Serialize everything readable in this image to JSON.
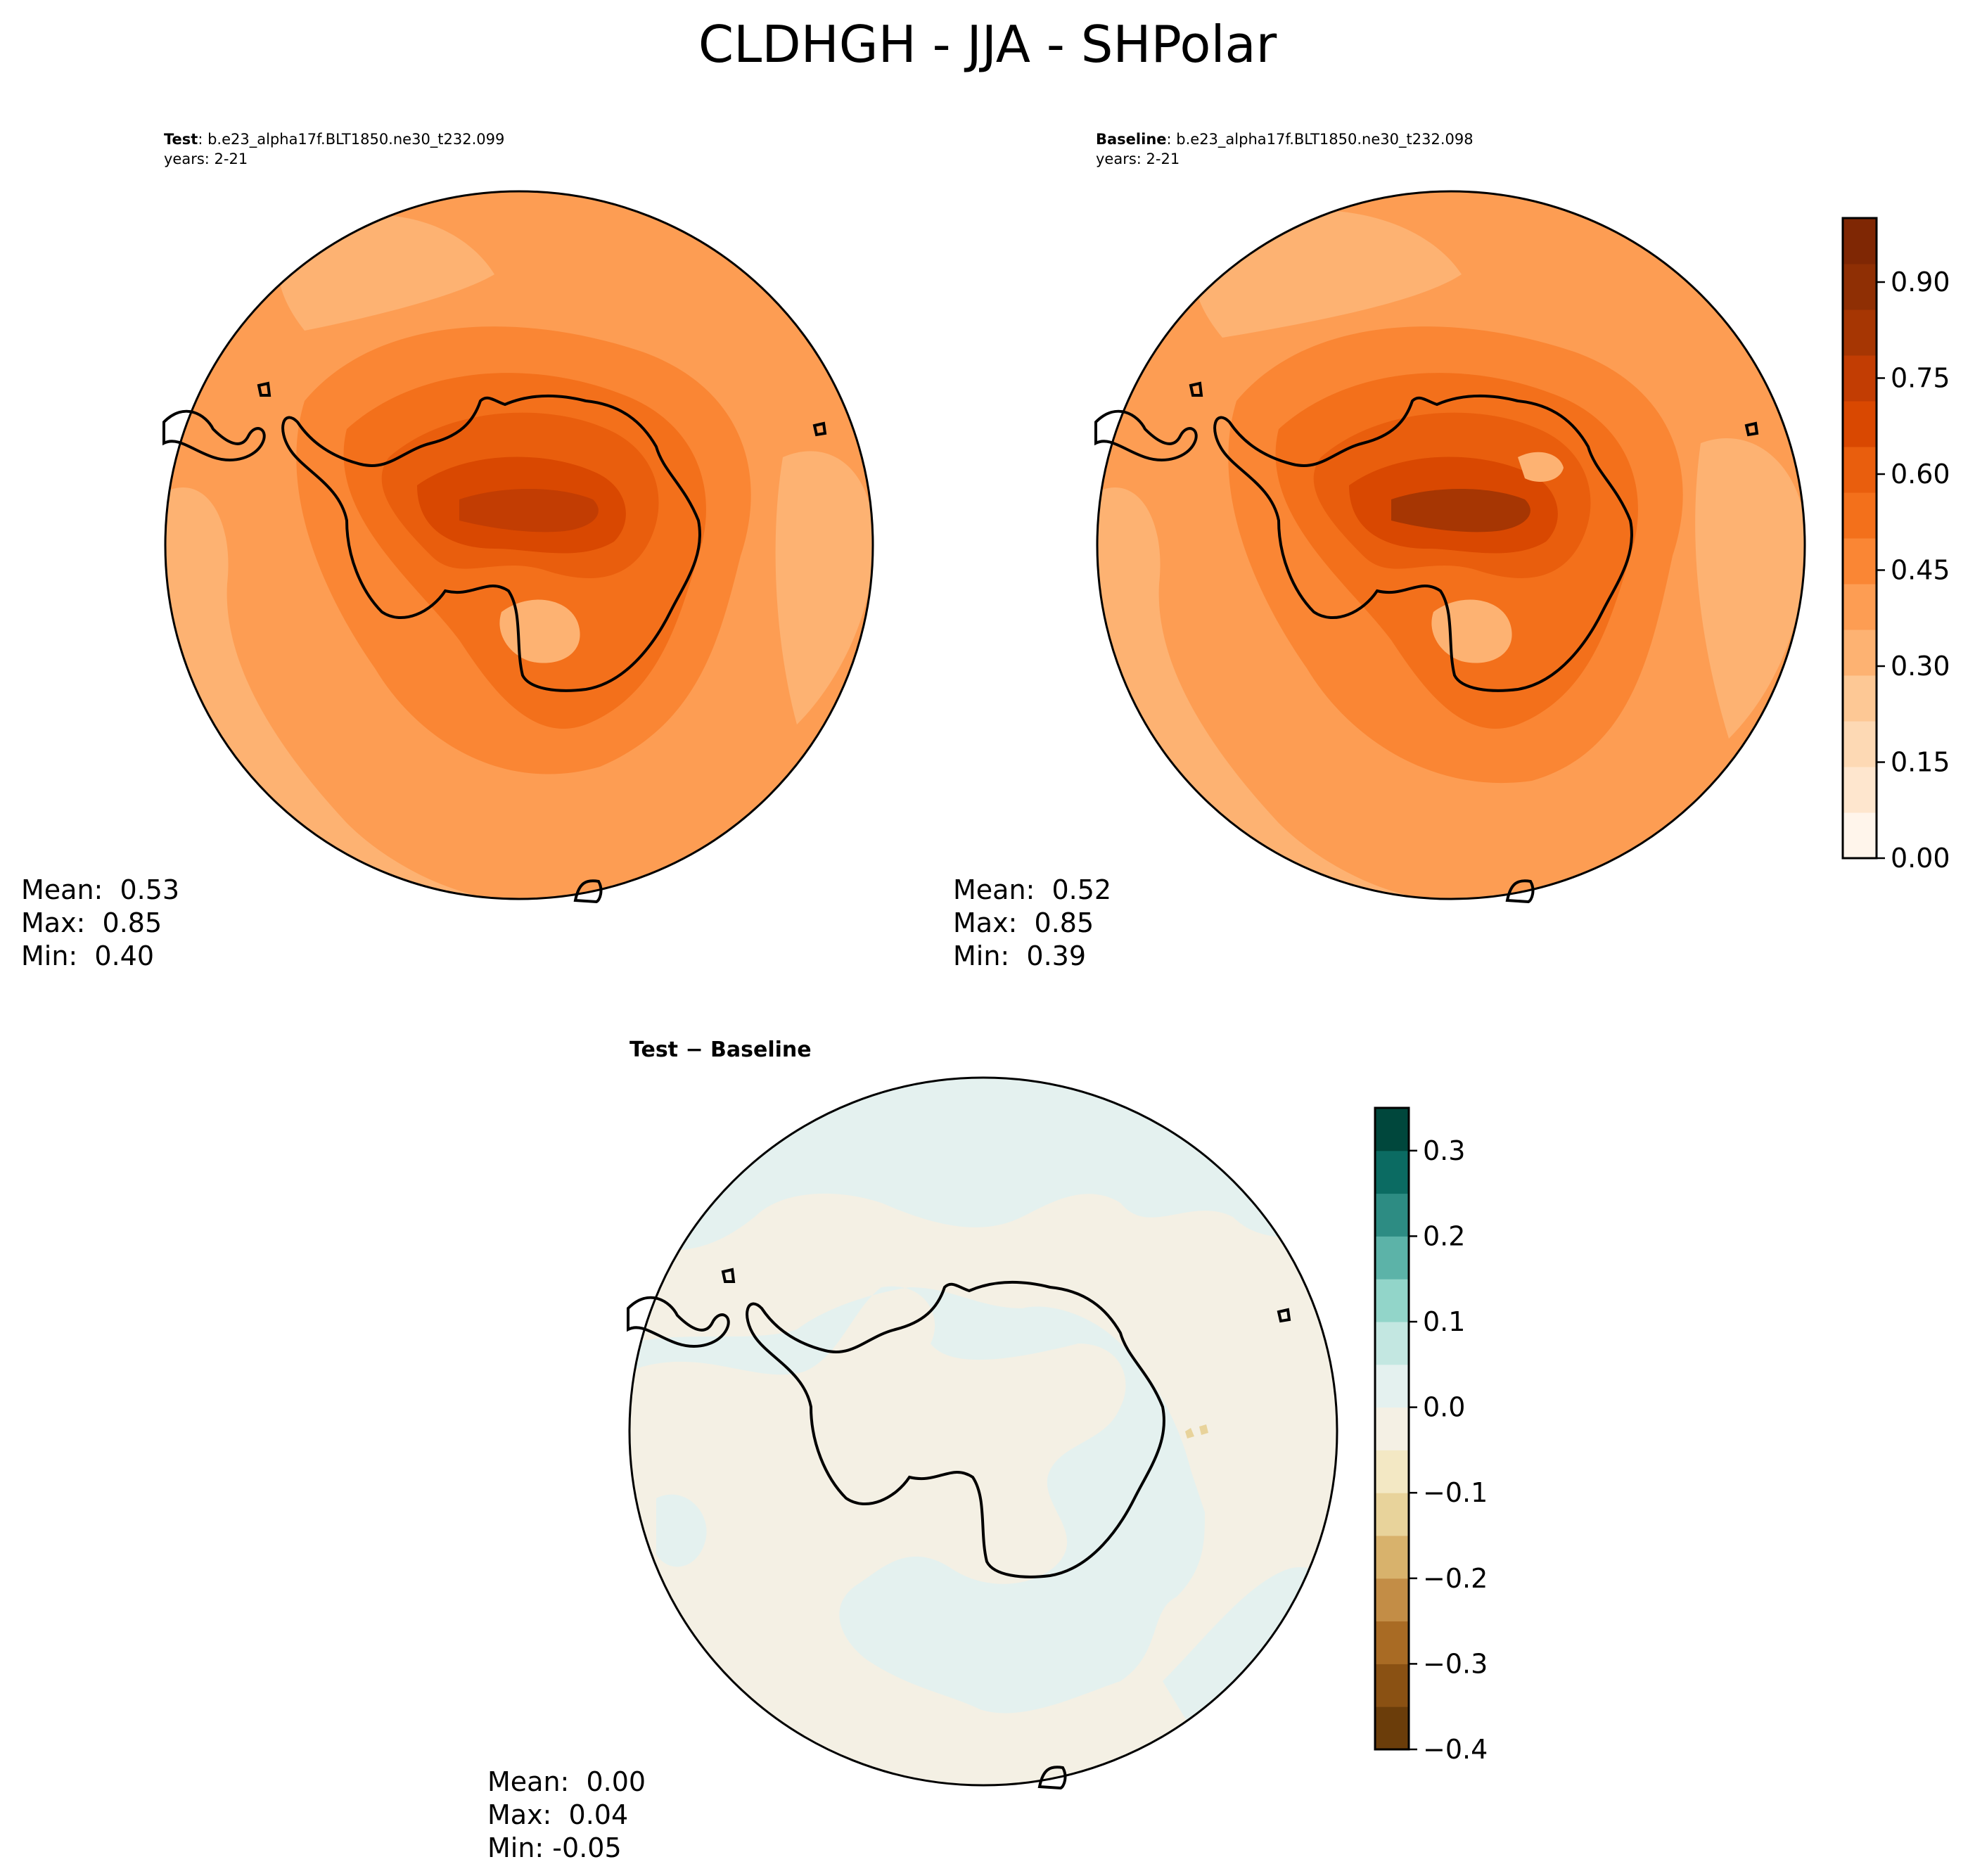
{
  "title": "CLDHGH - JJA - SHPolar",
  "panels": {
    "test": {
      "label": "Test",
      "case": ": b.e23_alpha17f.BLT1850.ne30_t232.099",
      "years": "years: 2-21",
      "mean": "Mean:  0.53",
      "max": "Max:  0.85",
      "min": "Min:  0.40"
    },
    "baseline": {
      "label": "Baseline",
      "case": ": b.e23_alpha17f.BLT1850.ne30_t232.098",
      "years": "years: 2-21",
      "mean": "Mean:  0.52",
      "max": "Max:  0.85",
      "min": "Min:  0.39"
    },
    "diff": {
      "label": "Test − Baseline",
      "mean": "Mean:  0.00",
      "max": "Max:  0.04",
      "min": "Min: -0.05"
    }
  },
  "colorbars": {
    "main": {
      "ticks": [
        "0.00",
        "0.15",
        "0.30",
        "0.45",
        "0.60",
        "0.75",
        "0.90"
      ],
      "colormap": "Oranges",
      "colors": [
        "#fff5eb",
        "#fee6ce",
        "#fdd9b4",
        "#fdc895",
        "#fdb272",
        "#fd9d53",
        "#fa8634",
        "#f3701b",
        "#e95e0d",
        "#d94801",
        "#c23d03",
        "#a63603",
        "#8f2f04",
        "#7f2704"
      ]
    },
    "diff": {
      "ticks": [
        "−0.4",
        "−0.3",
        "−0.2",
        "−0.1",
        "0.0",
        "0.1",
        "0.2",
        "0.3"
      ],
      "colormap": "BrBG",
      "colors": [
        "#6b3d0a",
        "#8a5113",
        "#a96b24",
        "#c38d46",
        "#d8b26c",
        "#e8d39b",
        "#f3e8c4",
        "#f4f0e4",
        "#e4f1ef",
        "#c3e7e1",
        "#92d5c9",
        "#5cb3a8",
        "#2d8c83",
        "#0b6b62",
        "#00473c"
      ]
    }
  },
  "map_colors": {
    "test": {
      "ocean": "#fd9d53",
      "light": "#fdb272",
      "mid": "#fa8634",
      "dark": "#f3701b",
      "darker": "#e95e0d",
      "core": "#d94801",
      "peak": "#c23d03",
      "outline": "#000000"
    },
    "baseline": {
      "ocean": "#fd9d53",
      "light": "#fdb272",
      "mid": "#fa8634",
      "dark": "#f3701b",
      "darker": "#e95e0d",
      "core": "#d94801",
      "peak": "#a63603",
      "outline": "#000000"
    },
    "diff": {
      "pos": "#e4f1ef",
      "neg": "#f4f0e4",
      "negStrong": "#e8d39b",
      "outline": "#000000"
    }
  }
}
